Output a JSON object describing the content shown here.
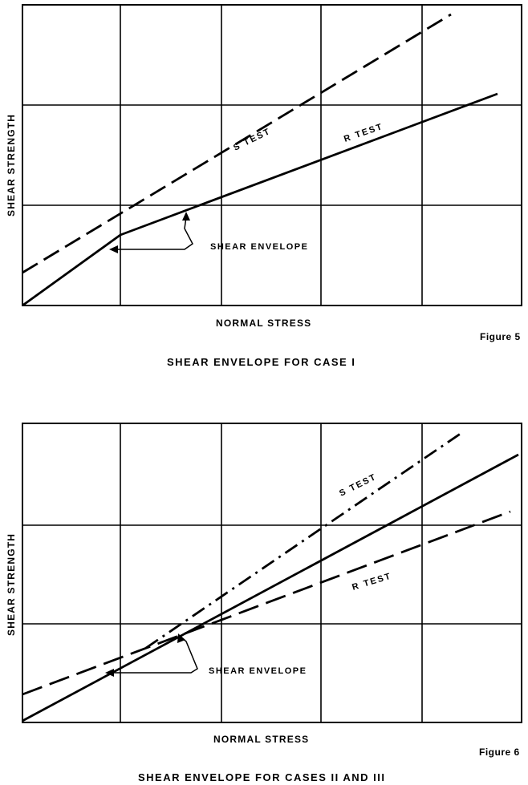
{
  "figures": [
    {
      "figure_label": "Figure 5",
      "caption": "SHEAR ENVELOPE FOR CASE I",
      "xlabel": "NORMAL STRESS",
      "ylabel": "SHEAR STRENGTH",
      "line_labels": {
        "s": "S TEST",
        "r": "R TEST"
      },
      "envelope_label": "SHEAR ENVELOPE"
    },
    {
      "figure_label": "Figure 6",
      "caption": "SHEAR ENVELOPE FOR CASES II AND III",
      "xlabel": "NORMAL STRESS",
      "ylabel": "SHEAR STRENGTH",
      "line_labels": {
        "s": "S TEST",
        "r": "R TEST"
      },
      "envelope_label": "SHEAR ENVELOPE"
    }
  ],
  "chart_data": [
    {
      "type": "line",
      "xlim": [
        0,
        5
      ],
      "ylim": [
        0,
        3
      ],
      "grid": true,
      "series": [
        {
          "name": "S TEST",
          "style": "dashed",
          "x": [
            0,
            4.3
          ],
          "y": [
            0.3,
            2.88
          ]
        },
        {
          "name": "R TEST",
          "style": "solid",
          "x": [
            1,
            4.75
          ],
          "y": [
            0.7,
            2.1
          ]
        },
        {
          "style": "solid",
          "x": [
            0,
            1
          ],
          "y": [
            0,
            0.7
          ]
        }
      ]
    },
    {
      "type": "line",
      "xlim": [
        0,
        5
      ],
      "ylim": [
        0,
        3
      ],
      "grid": true,
      "series": [
        {
          "name": "S TEST",
          "style": "dash-dot",
          "x": [
            1.25,
            4.4
          ],
          "y": [
            0.75,
            2.9
          ]
        },
        {
          "name": "R TEST",
          "style": "dashed",
          "x": [
            0,
            4.85
          ],
          "y": [
            0.28,
            2.11
          ]
        },
        {
          "style": "solid",
          "x": [
            0,
            5
          ],
          "y": [
            0,
            2.7
          ]
        }
      ]
    }
  ]
}
